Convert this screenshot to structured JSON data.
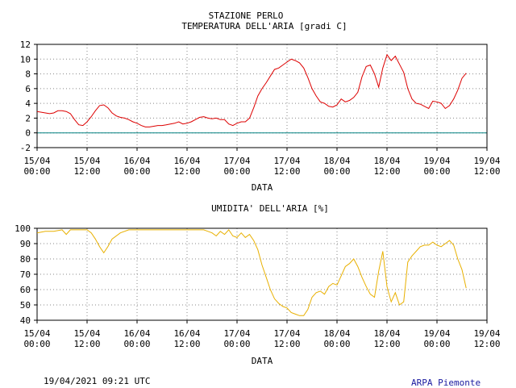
{
  "header": {
    "station": "STAZIONE PERLO"
  },
  "footer": {
    "timestamp": "19/04/2021 09:21 UTC",
    "credit": "ARPA Piemonte",
    "credit_color": "#1a1aa0"
  },
  "chart_data": [
    {
      "type": "line",
      "title": "TEMPERATURA DELL'ARIA [gradi C]",
      "xlabel": "DATA",
      "ylabel": "",
      "ylim": [
        -2,
        12
      ],
      "yticks": [
        -2,
        0,
        2,
        4,
        6,
        8,
        10,
        12
      ],
      "xlim": [
        0,
        108
      ],
      "xtick_hours": [
        0,
        12,
        24,
        36,
        48,
        60,
        72,
        84,
        96,
        108
      ],
      "xtick_labels": [
        [
          "15/04",
          "00:00"
        ],
        [
          "15/04",
          "12:00"
        ],
        [
          "16/04",
          "00:00"
        ],
        [
          "16/04",
          "12:00"
        ],
        [
          "17/04",
          "00:00"
        ],
        [
          "17/04",
          "12:00"
        ],
        [
          "18/04",
          "00:00"
        ],
        [
          "18/04",
          "12:00"
        ],
        [
          "19/04",
          "00:00"
        ],
        [
          "19/04",
          "12:00"
        ]
      ],
      "grid": true,
      "reference_line": {
        "y": 0,
        "color": "#008080"
      },
      "series": [
        {
          "color": "#dd0000",
          "x_hours_since": "15/04 00:00",
          "points": [
            [
              0,
              2.9
            ],
            [
              1,
              2.8
            ],
            [
              2,
              2.7
            ],
            [
              3,
              2.6
            ],
            [
              4,
              2.7
            ],
            [
              5,
              3.0
            ],
            [
              6,
              3.0
            ],
            [
              7,
              2.9
            ],
            [
              8,
              2.6
            ],
            [
              9,
              1.8
            ],
            [
              10,
              1.1
            ],
            [
              11,
              1.0
            ],
            [
              12,
              1.5
            ],
            [
              13,
              2.2
            ],
            [
              14,
              3.0
            ],
            [
              15,
              3.7
            ],
            [
              16,
              3.8
            ],
            [
              17,
              3.4
            ],
            [
              18,
              2.7
            ],
            [
              19,
              2.3
            ],
            [
              20,
              2.1
            ],
            [
              21,
              2.0
            ],
            [
              22,
              1.8
            ],
            [
              23,
              1.5
            ],
            [
              24,
              1.3
            ],
            [
              25,
              1.0
            ],
            [
              26,
              0.8
            ],
            [
              27,
              0.8
            ],
            [
              28,
              0.9
            ],
            [
              29,
              1.0
            ],
            [
              30,
              1.0
            ],
            [
              31,
              1.1
            ],
            [
              32,
              1.2
            ],
            [
              33,
              1.3
            ],
            [
              34,
              1.5
            ],
            [
              35,
              1.2
            ],
            [
              36,
              1.3
            ],
            [
              37,
              1.5
            ],
            [
              38,
              1.8
            ],
            [
              39,
              2.1
            ],
            [
              40,
              2.2
            ],
            [
              41,
              2.0
            ],
            [
              42,
              1.9
            ],
            [
              43,
              2.0
            ],
            [
              44,
              1.8
            ],
            [
              45,
              1.8
            ],
            [
              46,
              1.2
            ],
            [
              47,
              1.0
            ],
            [
              48,
              1.3
            ],
            [
              49,
              1.5
            ],
            [
              50,
              1.5
            ],
            [
              51,
              2.0
            ],
            [
              52,
              3.4
            ],
            [
              53,
              5.0
            ],
            [
              54,
              6.0
            ],
            [
              55,
              6.8
            ],
            [
              56,
              7.7
            ],
            [
              57,
              8.6
            ],
            [
              58,
              8.8
            ],
            [
              59,
              9.2
            ],
            [
              60,
              9.6
            ],
            [
              61,
              10.0
            ],
            [
              62,
              9.8
            ],
            [
              63,
              9.5
            ],
            [
              64,
              8.8
            ],
            [
              65,
              7.5
            ],
            [
              66,
              6.0
            ],
            [
              67,
              5.0
            ],
            [
              68,
              4.2
            ],
            [
              69,
              4.0
            ],
            [
              70,
              3.6
            ],
            [
              71,
              3.5
            ],
            [
              72,
              3.8
            ],
            [
              73,
              4.6
            ],
            [
              74,
              4.2
            ],
            [
              75,
              4.4
            ],
            [
              76,
              4.8
            ],
            [
              77,
              5.5
            ],
            [
              78,
              7.6
            ],
            [
              79,
              9.0
            ],
            [
              80,
              9.2
            ],
            [
              81,
              8.0
            ],
            [
              82,
              6.2
            ],
            [
              83,
              8.8
            ],
            [
              84,
              10.6
            ],
            [
              85,
              9.8
            ],
            [
              86,
              10.4
            ],
            [
              87,
              9.3
            ],
            [
              88,
              8.2
            ],
            [
              89,
              6.0
            ],
            [
              90,
              4.6
            ],
            [
              91,
              4.0
            ],
            [
              92,
              3.9
            ],
            [
              93,
              3.6
            ],
            [
              94,
              3.3
            ],
            [
              95,
              4.3
            ],
            [
              96,
              4.2
            ],
            [
              97,
              4.0
            ],
            [
              98,
              3.3
            ],
            [
              99,
              3.7
            ],
            [
              100,
              4.6
            ],
            [
              101,
              5.8
            ],
            [
              102,
              7.4
            ],
            [
              103,
              8.1
            ]
          ]
        }
      ]
    },
    {
      "type": "line",
      "title": "UMIDITA' DELL'ARIA [%]",
      "xlabel": "DATA",
      "ylabel": "",
      "ylim": [
        40,
        100
      ],
      "yticks": [
        40,
        50,
        60,
        70,
        80,
        90,
        100
      ],
      "xlim": [
        0,
        108
      ],
      "xtick_hours": [
        0,
        12,
        24,
        36,
        48,
        60,
        72,
        84,
        96,
        108
      ],
      "xtick_labels": [
        [
          "15/04",
          "00:00"
        ],
        [
          "15/04",
          "12:00"
        ],
        [
          "16/04",
          "00:00"
        ],
        [
          "16/04",
          "12:00"
        ],
        [
          "17/04",
          "00:00"
        ],
        [
          "17/04",
          "12:00"
        ],
        [
          "18/04",
          "00:00"
        ],
        [
          "18/04",
          "12:00"
        ],
        [
          "19/04",
          "00:00"
        ],
        [
          "19/04",
          "12:00"
        ]
      ],
      "grid": true,
      "series": [
        {
          "color": "#e8b000",
          "x_hours_since": "15/04 00:00",
          "points": [
            [
              0,
              97
            ],
            [
              2,
              98
            ],
            [
              4,
              98
            ],
            [
              6,
              99
            ],
            [
              7,
              96
            ],
            [
              8,
              99
            ],
            [
              10,
              99
            ],
            [
              12,
              99
            ],
            [
              13,
              97
            ],
            [
              14,
              93
            ],
            [
              15,
              88
            ],
            [
              16,
              84
            ],
            [
              17,
              88
            ],
            [
              18,
              93
            ],
            [
              20,
              97
            ],
            [
              22,
              99
            ],
            [
              24,
              99
            ],
            [
              26,
              99
            ],
            [
              28,
              99
            ],
            [
              30,
              99
            ],
            [
              32,
              99
            ],
            [
              34,
              99
            ],
            [
              36,
              99
            ],
            [
              38,
              99
            ],
            [
              40,
              99
            ],
            [
              42,
              97
            ],
            [
              43,
              95
            ],
            [
              44,
              98
            ],
            [
              45,
              96
            ],
            [
              46,
              99
            ],
            [
              47,
              95
            ],
            [
              48,
              94
            ],
            [
              49,
              97
            ],
            [
              50,
              94
            ],
            [
              51,
              96
            ],
            [
              52,
              92
            ],
            [
              53,
              86
            ],
            [
              54,
              76
            ],
            [
              55,
              68
            ],
            [
              56,
              60
            ],
            [
              57,
              54
            ],
            [
              58,
              51
            ],
            [
              59,
              49
            ],
            [
              60,
              48
            ],
            [
              61,
              45
            ],
            [
              62,
              44
            ],
            [
              63,
              43
            ],
            [
              64,
              43
            ],
            [
              65,
              47
            ],
            [
              66,
              55
            ],
            [
              67,
              58
            ],
            [
              68,
              59
            ],
            [
              69,
              57
            ],
            [
              70,
              62
            ],
            [
              71,
              64
            ],
            [
              72,
              63
            ],
            [
              73,
              69
            ],
            [
              74,
              75
            ],
            [
              75,
              77
            ],
            [
              76,
              80
            ],
            [
              77,
              75
            ],
            [
              78,
              68
            ],
            [
              79,
              62
            ],
            [
              80,
              57
            ],
            [
              81,
              55
            ],
            [
              82,
              72
            ],
            [
              83,
              85
            ],
            [
              84,
              62
            ],
            [
              85,
              52
            ],
            [
              86,
              58
            ],
            [
              87,
              50
            ],
            [
              88,
              52
            ],
            [
              89,
              78
            ],
            [
              90,
              82
            ],
            [
              91,
              85
            ],
            [
              92,
              88
            ],
            [
              93,
              89
            ],
            [
              94,
              89
            ],
            [
              95,
              91
            ],
            [
              96,
              89
            ],
            [
              97,
              88
            ],
            [
              98,
              90
            ],
            [
              99,
              92
            ],
            [
              100,
              89
            ],
            [
              101,
              80
            ],
            [
              102,
              73
            ],
            [
              103,
              61
            ]
          ]
        }
      ]
    }
  ]
}
